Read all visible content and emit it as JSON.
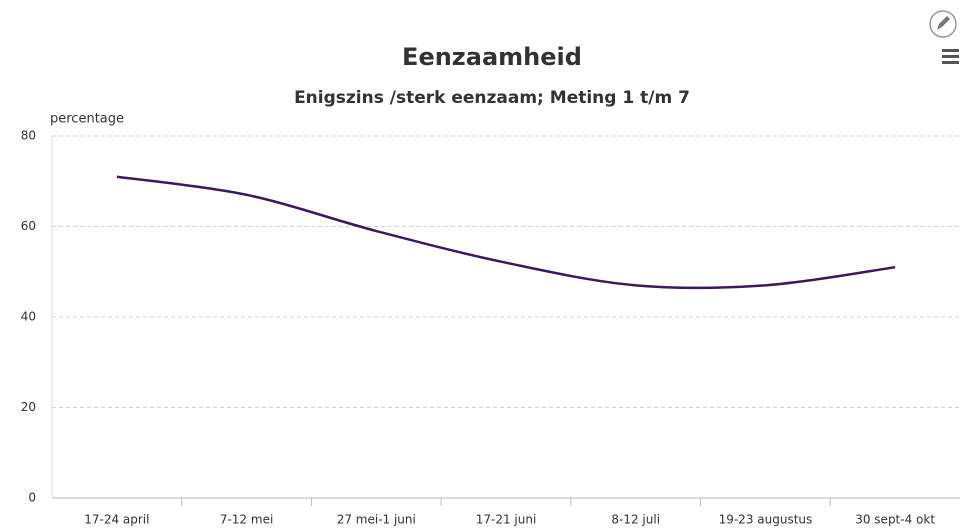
{
  "chart_data": {
    "type": "line",
    "title": "Eenzaamheid",
    "subtitle": "Enigszins /sterk eenzaam; Meting 1 t/m 7",
    "y_label": "percentage",
    "categories": [
      "17-24 april",
      "7-12 mei",
      "27 mei-1 juni",
      "17-21 juni",
      "8-12 juli",
      "19-23 augustus",
      "30 sept-4 okt"
    ],
    "series": [
      {
        "name": "Enigszins /sterk eenzaam",
        "color": "#3b1a5a",
        "values": [
          71,
          67,
          59,
          52,
          47,
          47,
          51
        ]
      }
    ],
    "ylim": [
      0,
      80
    ],
    "yticks": [
      0,
      20,
      40,
      60,
      80
    ],
    "grid": true
  }
}
